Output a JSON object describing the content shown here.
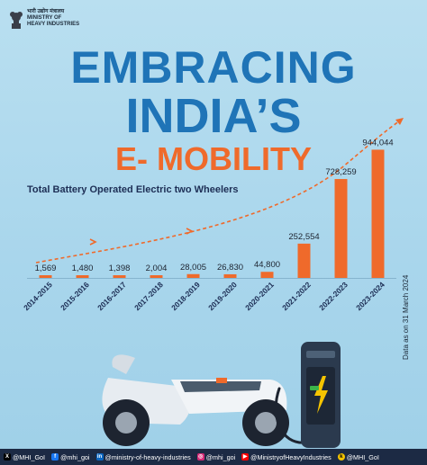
{
  "header": {
    "ministry_hindi": "भारी उद्योग मंत्रालय",
    "ministry_line1": "MINISTRY OF",
    "ministry_line2": "HEAVY INDUSTRIES"
  },
  "title": {
    "line1": "EMBRACING",
    "line2": "INDIA’S",
    "line3": "E- MOBILITY"
  },
  "chart_data": {
    "type": "bar",
    "title": "Total Battery Operated Electric two Wheelers",
    "categories": [
      "2014-2015",
      "2015-2016",
      "2016-2017",
      "2017-2018",
      "2018-2019",
      "2019-2020",
      "2020-2021",
      "2021-2022",
      "2022-2023",
      "2023-2024"
    ],
    "values": [
      1569,
      1480,
      1398,
      2004,
      28005,
      26830,
      44800,
      252554,
      728259,
      944044
    ],
    "value_labels": [
      "1,569",
      "1,480",
      "1,398",
      "2,004",
      "28,005",
      "26,830",
      "44,800",
      "252,554",
      "728,259",
      "944,044"
    ],
    "ylim": [
      0,
      1000000
    ],
    "bar_color": "#ef6a2b",
    "trend_arrow": true,
    "grid": false
  },
  "note": "Data as on 31 March 2024",
  "footer": {
    "items": [
      {
        "icon": "x-icon",
        "label": "@MHI_GoI"
      },
      {
        "icon": "facebook-icon",
        "label": "@mhi_goi"
      },
      {
        "icon": "linkedin-icon",
        "label": "@ministry-of-heavy-industries"
      },
      {
        "icon": "instagram-icon",
        "label": "@mhi_goi"
      },
      {
        "icon": "youtube-icon",
        "label": "@MinistryofHeavyIndustries"
      },
      {
        "icon": "koo-icon",
        "label": "@MHI_GoI"
      }
    ]
  },
  "colors": {
    "title_blue": "#1f74b7",
    "accent_orange": "#ef6a2b",
    "navy": "#1c2a44"
  }
}
